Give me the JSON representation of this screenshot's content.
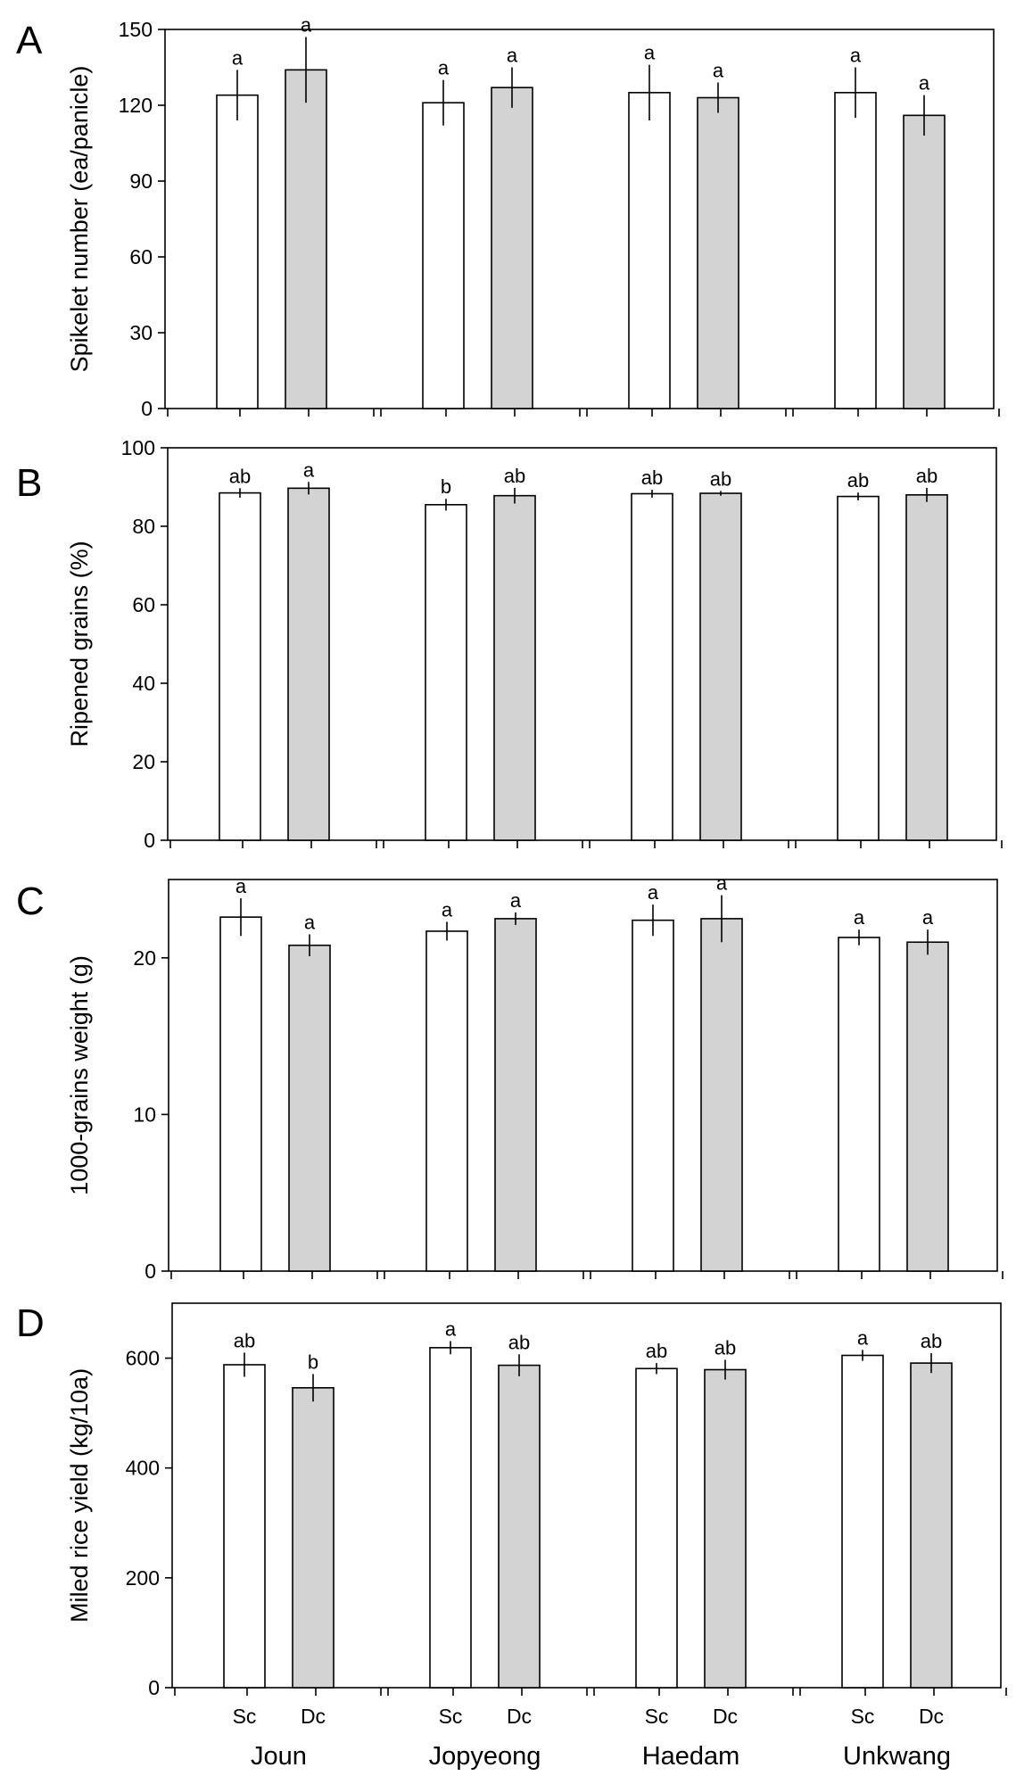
{
  "figure": {
    "categories": [
      "Joun",
      "Jopyeong",
      "Haedam",
      "Unkwang"
    ],
    "treatments": [
      "Sc",
      "Dc"
    ],
    "colors": {
      "Sc": "#ffffff",
      "Dc": "#d3d3d3"
    }
  },
  "chart_data": [
    {
      "type": "bar",
      "panel": "A",
      "ylabel": "Spikelet number (ea/panicle)",
      "ylim": [
        0,
        150
      ],
      "yticks": [
        0,
        30,
        60,
        90,
        120,
        150
      ],
      "categories": [
        "Joun",
        "Jopyeong",
        "Haedam",
        "Unkwang"
      ],
      "series": [
        {
          "name": "Sc",
          "values": [
            124,
            121,
            125,
            125
          ],
          "errors": [
            10,
            9,
            11,
            10
          ],
          "letters": [
            "a",
            "a",
            "a",
            "a"
          ]
        },
        {
          "name": "Dc",
          "values": [
            134,
            127,
            123,
            116
          ],
          "errors": [
            13,
            8,
            6,
            8
          ],
          "letters": [
            "a",
            "a",
            "a",
            "a"
          ]
        }
      ]
    },
    {
      "type": "bar",
      "panel": "B",
      "ylabel": "Ripened grains (%)",
      "ylim": [
        0,
        100
      ],
      "yticks": [
        0,
        20,
        40,
        60,
        80,
        100
      ],
      "categories": [
        "Joun",
        "Jopyeong",
        "Haedam",
        "Unkwang"
      ],
      "series": [
        {
          "name": "Sc",
          "values": [
            88.5,
            85.5,
            88.3,
            87.6
          ],
          "errors": [
            1.2,
            1.5,
            1.0,
            1.0
          ],
          "letters": [
            "ab",
            "b",
            "ab",
            "ab"
          ]
        },
        {
          "name": "Dc",
          "values": [
            89.7,
            87.8,
            88.4,
            88.0
          ],
          "errors": [
            1.6,
            2.0,
            0.6,
            1.8
          ],
          "letters": [
            "a",
            "ab",
            "ab",
            "ab"
          ]
        }
      ]
    },
    {
      "type": "bar",
      "panel": "C",
      "ylabel": "1000-grains weight (g)",
      "ylim": [
        0,
        25
      ],
      "yticks": [
        0,
        10,
        20
      ],
      "categories": [
        "Joun",
        "Jopyeong",
        "Haedam",
        "Unkwang"
      ],
      "series": [
        {
          "name": "Sc",
          "values": [
            22.6,
            21.7,
            22.4,
            21.3
          ],
          "errors": [
            1.2,
            0.6,
            1.0,
            0.5
          ],
          "letters": [
            "a",
            "a",
            "a",
            "a"
          ]
        },
        {
          "name": "Dc",
          "values": [
            20.8,
            22.5,
            22.5,
            21.0
          ],
          "errors": [
            0.7,
            0.4,
            1.5,
            0.8
          ],
          "letters": [
            "a",
            "a",
            "a",
            "a"
          ]
        }
      ]
    },
    {
      "type": "bar",
      "panel": "D",
      "ylabel": "Miled rice yield (kg/10a)",
      "ylim": [
        0,
        700
      ],
      "yticks": [
        0,
        200,
        400,
        600
      ],
      "categories": [
        "Joun",
        "Jopyeong",
        "Haedam",
        "Unkwang"
      ],
      "series": [
        {
          "name": "Sc",
          "values": [
            588,
            619,
            581,
            605
          ],
          "errors": [
            22,
            12,
            10,
            10
          ],
          "letters": [
            "ab",
            "a",
            "ab",
            "a"
          ]
        },
        {
          "name": "Dc",
          "values": [
            546,
            587,
            579,
            591
          ],
          "errors": [
            25,
            20,
            18,
            18
          ],
          "letters": [
            "b",
            "ab",
            "ab",
            "ab"
          ]
        }
      ]
    }
  ]
}
